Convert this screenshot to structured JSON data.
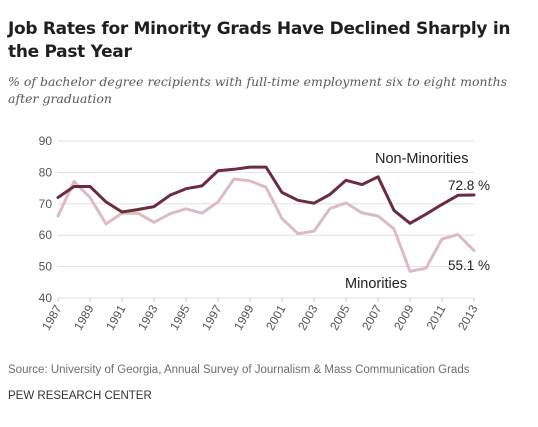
{
  "header": {
    "title": "Job Rates for Minority Grads Have Declined Sharply in the Past Year",
    "subtitle": "% of bachelor degree recipients with full-time employment six to eight months after graduation"
  },
  "footer": {
    "source": "Source: University of Georgia, Annual Survey of Journalism & Mass Communication Grads",
    "brand": "PEW RESEARCH CENTER"
  },
  "chart_data": {
    "type": "line",
    "title": "Job Rates for Minority Grads Have Declined Sharply in the Past Year",
    "subtitle": "% of bachelor degree recipients with full-time employment six to eight months after graduation",
    "xlabel": "",
    "ylabel": "",
    "x": [
      1987,
      1988,
      1989,
      1990,
      1991,
      1992,
      1993,
      1994,
      1995,
      1996,
      1997,
      1998,
      1999,
      2000,
      2001,
      2002,
      2003,
      2004,
      2005,
      2006,
      2007,
      2008,
      2009,
      2010,
      2011,
      2012,
      2013
    ],
    "xticks": [
      1987,
      1989,
      1991,
      1993,
      1995,
      1997,
      1999,
      2001,
      2003,
      2005,
      2007,
      2009,
      2011,
      2013
    ],
    "xtick_labels": [
      "1987",
      "1989",
      "1991",
      "1993",
      "1995",
      "1997",
      "1999",
      "2001",
      "2003",
      "2005",
      "2007",
      "2009",
      "2011",
      "2013"
    ],
    "ylim": [
      40,
      90
    ],
    "yticks": [
      40,
      50,
      60,
      70,
      80,
      90
    ],
    "ytick_labels": [
      "40",
      "50",
      "60",
      "70",
      "80",
      "90"
    ],
    "grid": "horizontal",
    "series": [
      {
        "name": "Non-Minorities",
        "color": "#6b2d3c",
        "values": [
          72.0,
          75.5,
          75.5,
          70.6,
          67.4,
          68.2,
          69.1,
          72.7,
          74.8,
          75.7,
          80.5,
          81.0,
          81.7,
          81.7,
          73.6,
          71.1,
          70.2,
          73.0,
          77.5,
          76.1,
          78.6,
          67.9,
          63.8,
          66.7,
          69.8,
          72.7,
          72.8
        ],
        "label": "Non-Minorities",
        "end_label": "72.8 %"
      },
      {
        "name": "Minorities",
        "color": "#dcbcc2",
        "values": [
          66.1,
          77.1,
          72.0,
          63.6,
          67.0,
          67.0,
          64.1,
          66.8,
          68.4,
          67.0,
          70.6,
          77.9,
          77.3,
          75.3,
          65.3,
          60.5,
          61.3,
          68.5,
          70.3,
          67.1,
          66.1,
          62.0,
          48.5,
          49.5,
          58.8,
          60.2,
          55.1
        ],
        "label": "Minorities",
        "end_label": "55.1 %"
      }
    ]
  }
}
